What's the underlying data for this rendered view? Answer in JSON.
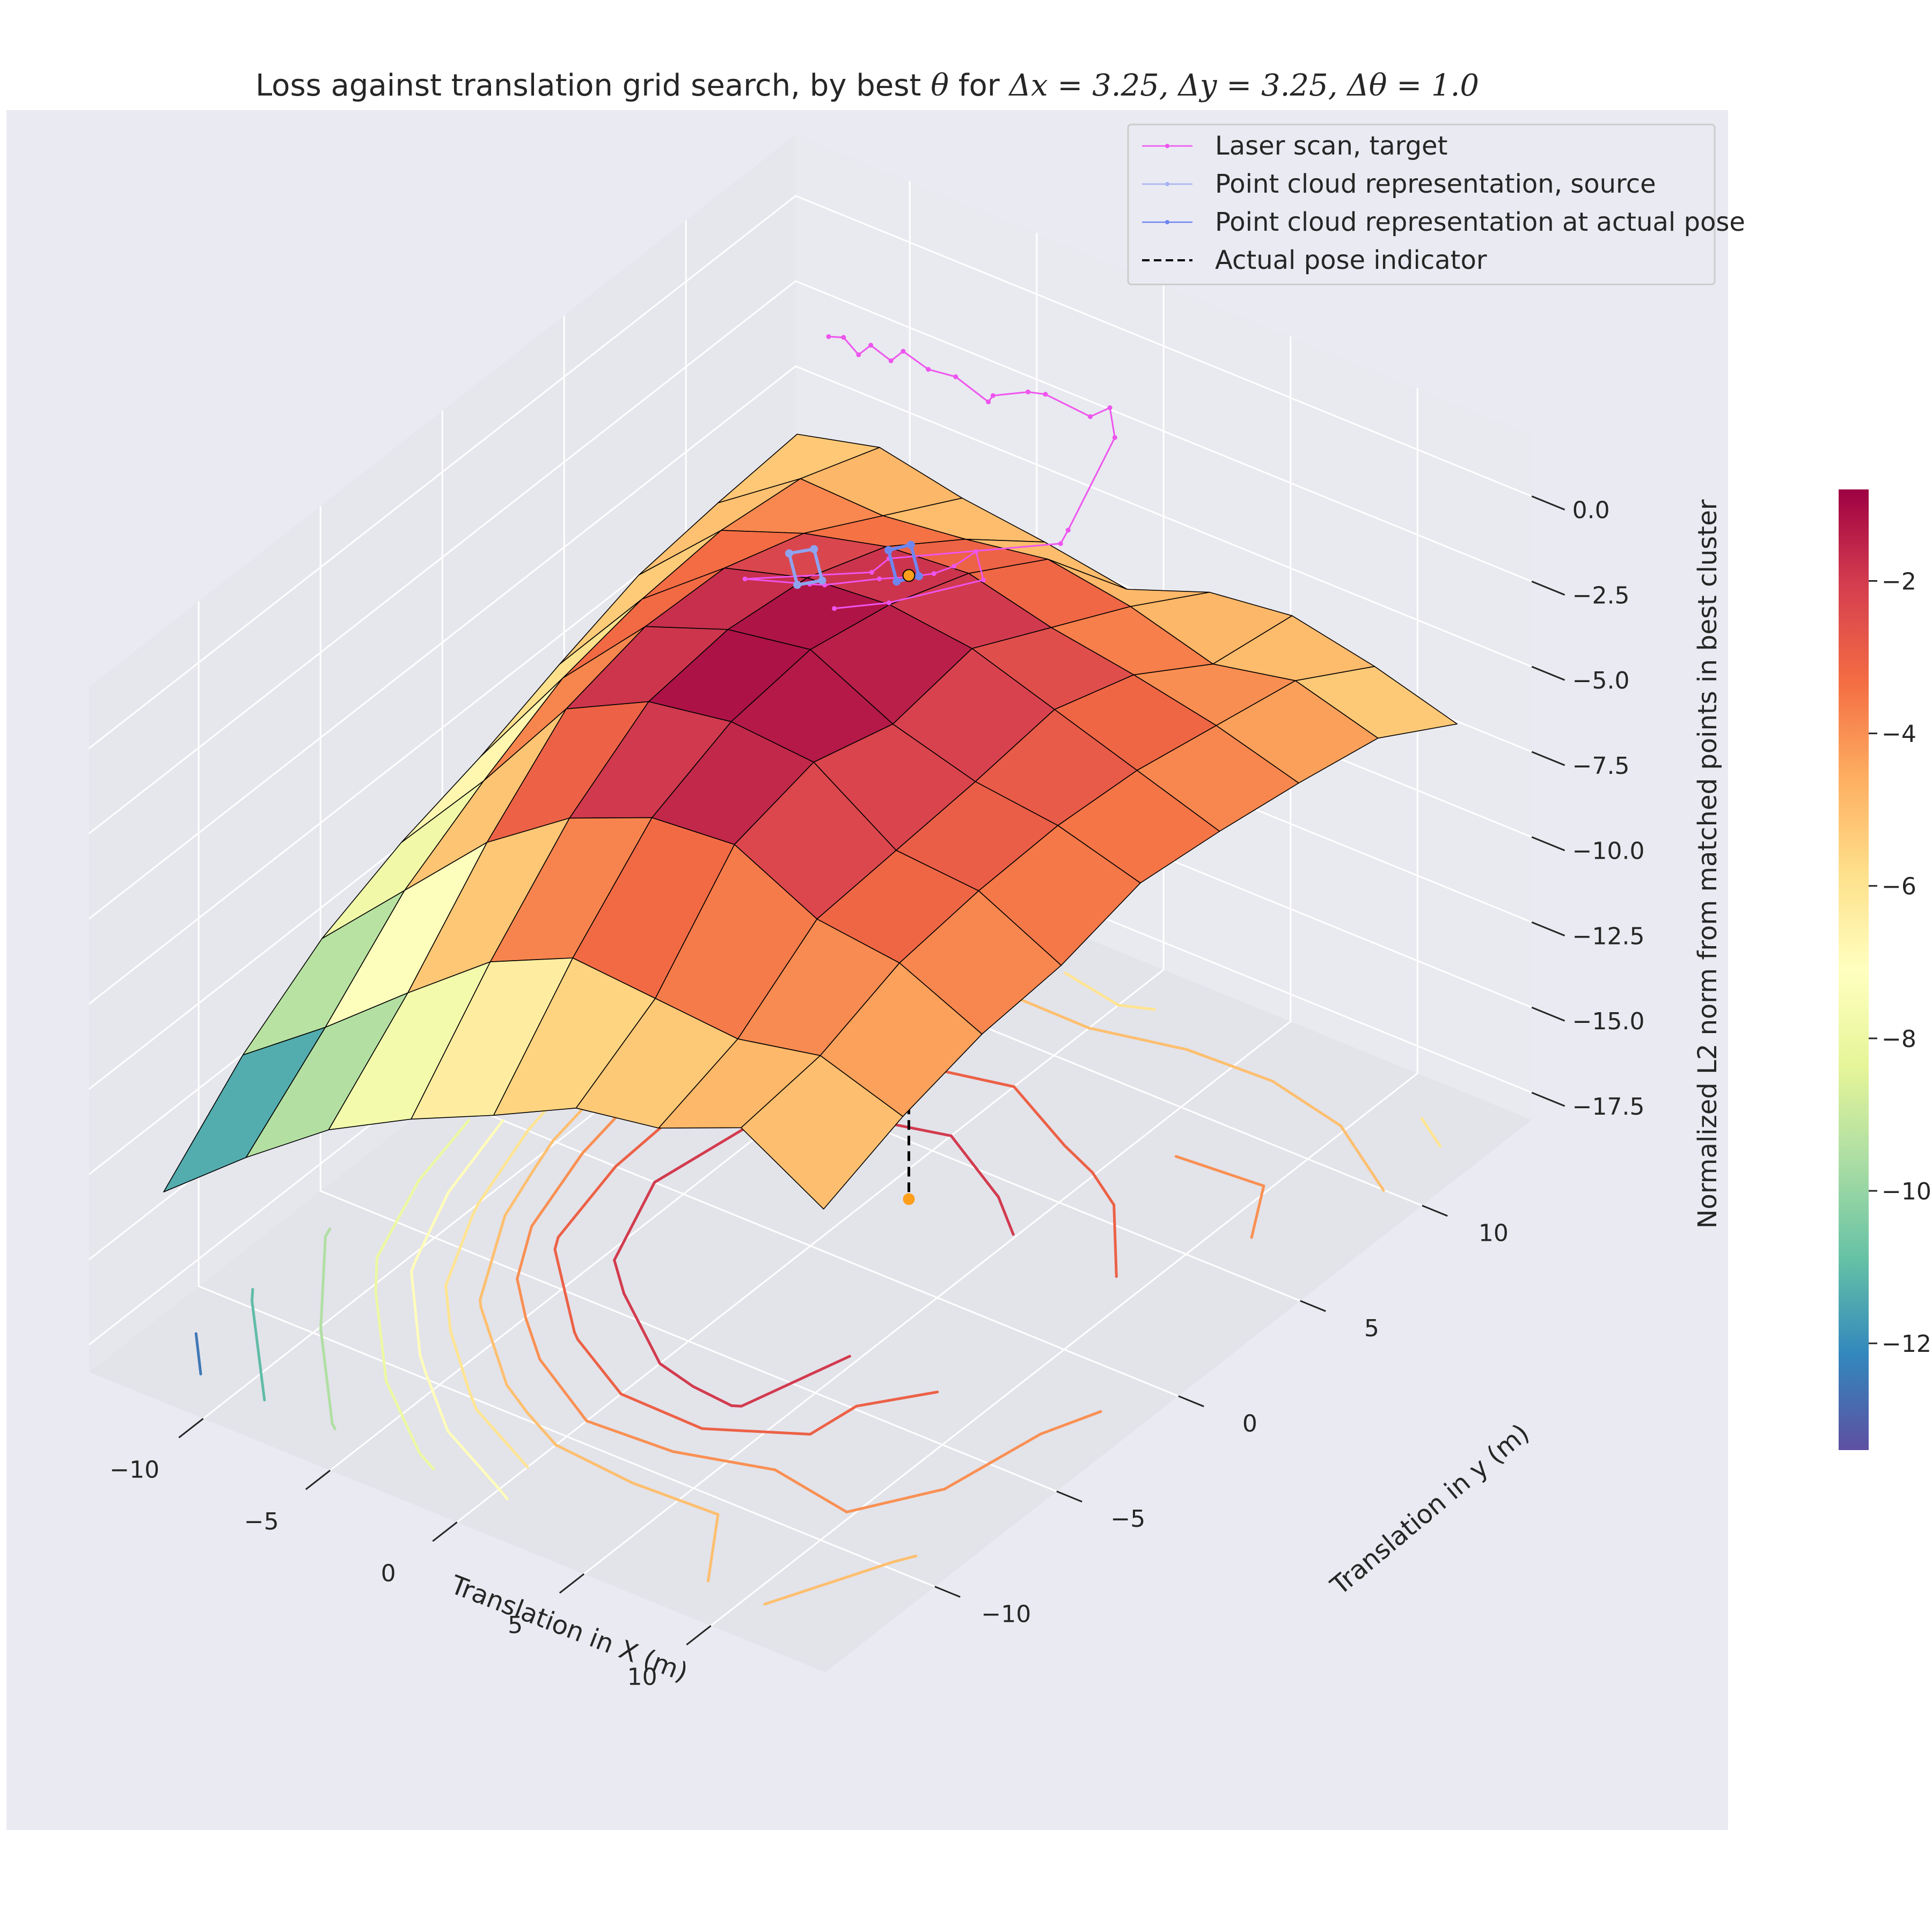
{
  "chart_data": {
    "type": "surface3d",
    "title": "Loss against translation grid search, by best θ for Δx = 3.25, Δy = 3.25, Δθ = 1.0",
    "title_parts": {
      "prefix": "Loss against translation grid search, by best ",
      "theta": "θ",
      "mid": " for ",
      "dx": "Δx = 3.25, ",
      "dy": "Δy = 3.25, ",
      "dth": "Δθ = 1.0"
    },
    "xlabel": "Translation in X (m)",
    "ylabel": "Translation in y (m)",
    "zlabel": "Normalized L2 norm from matched points in best cluster",
    "x_ticks": [
      "−10",
      "−5",
      "0",
      "5",
      "10"
    ],
    "y_ticks": [
      "−10",
      "−5",
      "0",
      "5",
      "10"
    ],
    "z_ticks": [
      "0.0",
      "−2.5",
      "−5.0",
      "−7.5",
      "−10.0",
      "−12.5",
      "−15.0",
      "−17.5"
    ],
    "colorbar_ticks": [
      "−2",
      "−4",
      "−6",
      "−8",
      "−10",
      "−12"
    ],
    "colorbar_range": [
      -13.4,
      -0.8
    ],
    "colormap": "Spectral",
    "grid": true,
    "legend_placement": "top-right",
    "legend": [
      {
        "label": "Laser scan, target",
        "color": "#ee55ee",
        "style": "solid-marker"
      },
      {
        "label": "Point cloud representation, source",
        "color": "#a6b4f0",
        "style": "solid-marker"
      },
      {
        "label": "Point cloud representation at actual pose",
        "color": "#6f86f0",
        "style": "solid-marker"
      },
      {
        "label": "Actual pose indicator",
        "color": "#000000",
        "style": "dashed"
      }
    ],
    "x": [
      -13,
      -9.75,
      -6.5,
      -3.25,
      0,
      3.25,
      6.5,
      9.75,
      13
    ],
    "y": [
      -13,
      -9.75,
      -6.5,
      -3.25,
      0,
      3.25,
      6.5,
      9.75,
      13
    ],
    "z": [
      [
        -13.4,
        -11.2,
        -9.6,
        -8.6,
        -7.9,
        -7.0,
        -6.2,
        -5.9,
        -5.7
      ],
      [
        -11.4,
        -9.4,
        -7.2,
        -5.8,
        -4.6,
        -4.1,
        -3.9,
        -4.2,
        -5.1
      ],
      [
        -9.6,
        -7.4,
        -4.8,
        -2.7,
        -2.1,
        -2.2,
        -3.0,
        -4.3,
        -5.6
      ],
      [
        -8.3,
        -5.5,
        -3.1,
        -1.5,
        -1.2,
        -1.5,
        -2.4,
        -4.0,
        -5.9
      ],
      [
        -7.2,
        -4.4,
        -2.1,
        -1.1,
        -0.8,
        -1.3,
        -2.2,
        -3.6,
        -6.3
      ],
      [
        -6.0,
        -4.6,
        -1.9,
        -1.3,
        -2.0,
        -1.6,
        -2.8,
        -4.0,
        -5.4
      ],
      [
        -5.6,
        -4.8,
        -3.1,
        -2.9,
        -2.7,
        -2.4,
        -3.2,
        -4.7,
        -5.1
      ],
      [
        -4.6,
        -4.3,
        -3.4,
        -3.1,
        -3.0,
        -3.2,
        -3.7,
        -4.2,
        -5.6
      ],
      [
        -6.0,
        -5.1,
        -4.5,
        -4.3,
        -3.7,
        -4.0,
        -4.4,
        -4.9,
        -6.3
      ]
    ],
    "contour_levels": [
      -12.5,
      -11,
      -9.5,
      -8,
      -7,
      -6,
      -5,
      -4,
      -3,
      -2
    ],
    "actual_pose": {
      "x": 1.0,
      "y": 3.0
    },
    "laser_scan_target": [
      [
        -1.2,
        2.0,
        6.9
      ],
      [
        -0.9,
        2.3,
        6.8
      ],
      [
        -0.5,
        2.5,
        6.3
      ],
      [
        -0.5,
        3.0,
        6.3
      ],
      [
        0.2,
        3.1,
        6.0
      ],
      [
        0.2,
        3.6,
        6.0
      ],
      [
        1.0,
        3.8,
        5.6
      ],
      [
        1.5,
        4.4,
        5.2
      ],
      [
        2.5,
        4.7,
        4.6
      ],
      [
        2.3,
        5.1,
        4.5
      ],
      [
        3.2,
        5.6,
        4.6
      ],
      [
        3.5,
        6.0,
        4.4
      ],
      [
        4.5,
        6.8,
        3.6
      ],
      [
        4.6,
        7.5,
        3.5
      ],
      [
        4.7,
        7.6,
        2.6
      ],
      [
        4.3,
        6.1,
        0.6
      ],
      [
        4.1,
        6.0,
        0.2
      ],
      [
        0.6,
        2.6,
        0.6
      ],
      [
        0.5,
        2.0,
        0.5
      ],
      [
        -2.0,
        -0.6,
        1.0
      ],
      [
        -0.6,
        0.6,
        0.6
      ],
      [
        -0.3,
        0.9,
        0.5
      ],
      [
        0.8,
        2.0,
        0.4
      ],
      [
        1.4,
        2.6,
        0.3
      ],
      [
        1.7,
        3.3,
        0.1
      ],
      [
        2.2,
        3.6,
        0.3
      ],
      [
        2.4,
        4.3,
        0.4
      ],
      [
        2.4,
        4.6,
        -0.6
      ],
      [
        0.6,
        2.6,
        -0.7
      ],
      [
        -0.4,
        1.4,
        -0.5
      ]
    ],
    "source_cloud": [
      [
        -1.7,
        0.9,
        1.0
      ],
      [
        -1.2,
        1.4,
        1.0
      ],
      [
        -0.4,
        0.9,
        0.6
      ],
      [
        -0.9,
        0.4,
        0.6
      ],
      [
        -1.7,
        0.9,
        1.0
      ]
    ],
    "cloud_at_actual_pose": [
      [
        0.2,
        3.0,
        0.5
      ],
      [
        0.6,
        3.5,
        0.5
      ],
      [
        1.4,
        3.0,
        0.1
      ],
      [
        1.0,
        2.5,
        0.1
      ],
      [
        0.2,
        3.0,
        0.5
      ]
    ]
  }
}
